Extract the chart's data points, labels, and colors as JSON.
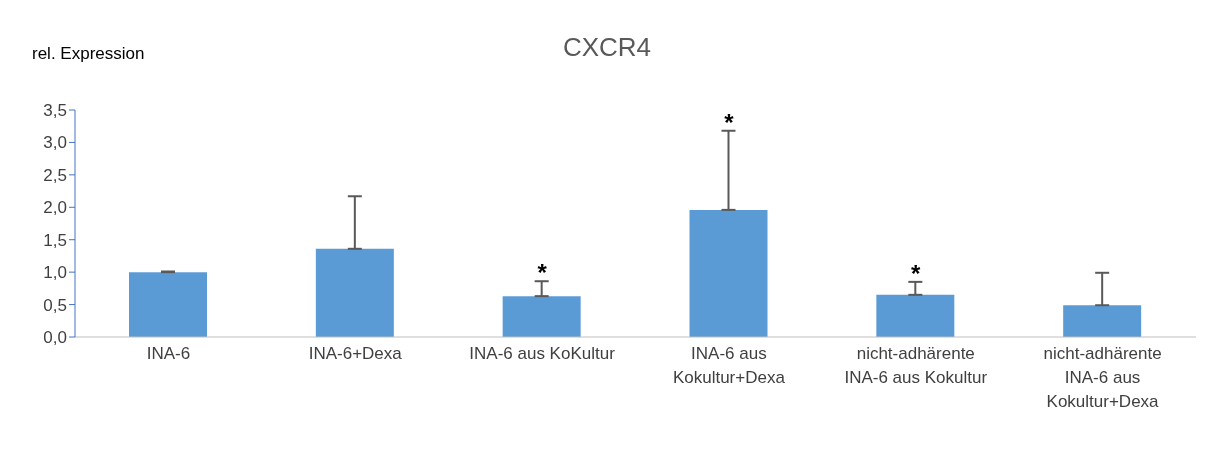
{
  "chart_data": {
    "type": "bar",
    "title": "CXCR4",
    "ylabel": "rel. Expression",
    "categories": [
      "INA-6",
      "INA-6+Dexa",
      "INA-6 aus KoKultur",
      "INA-6 aus Kokultur+Dexa",
      "nicht-adhärente INA-6 aus Kokultur",
      "nicht-adhärente INA-6 aus Kokultur+Dexa"
    ],
    "values": [
      1.0,
      1.36,
      0.63,
      1.96,
      0.65,
      0.49
    ],
    "errors": [
      [
        1.0,
        1.01
      ],
      [
        1.36,
        2.17
      ],
      [
        0.63,
        0.86
      ],
      [
        1.96,
        3.18
      ],
      [
        0.65,
        0.85
      ],
      [
        0.49,
        0.99
      ]
    ],
    "color": "#5b9bd5",
    "ylim": [
      0,
      3.5
    ],
    "yticks": [
      {
        "value": 0,
        "label": "0,0"
      },
      {
        "value": 0.5,
        "label": "0,5"
      },
      {
        "value": 1,
        "label": "1,0"
      },
      {
        "value": 1.5,
        "label": "1,5"
      },
      {
        "value": 2,
        "label": "2,0"
      },
      {
        "value": 2.5,
        "label": "2,5"
      },
      {
        "value": 3,
        "label": "3,0"
      },
      {
        "value": 3.5,
        "label": "3,5"
      }
    ],
    "grid": false,
    "legend": false,
    "annotations": [
      {
        "text": "*",
        "x": "INA-6 aus KoKultur",
        "y": 0.86
      },
      {
        "text": "*",
        "x": "INA-6 aus Kokultur+Dexa",
        "y": 3.18
      },
      {
        "text": "*",
        "x": "nicht-adhärente INA-6 aus Kokultur",
        "y": 0.85
      }
    ]
  }
}
